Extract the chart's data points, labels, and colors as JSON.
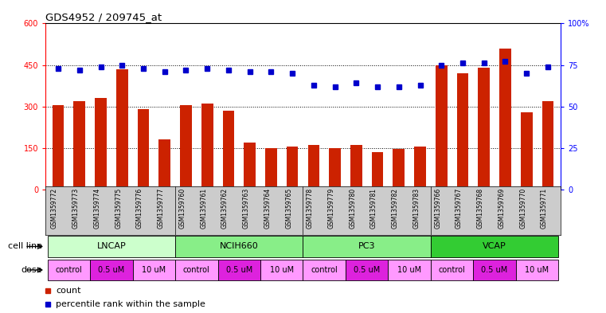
{
  "title": "GDS4952 / 209745_at",
  "samples": [
    "GSM1359772",
    "GSM1359773",
    "GSM1359774",
    "GSM1359775",
    "GSM1359776",
    "GSM1359777",
    "GSM1359760",
    "GSM1359761",
    "GSM1359762",
    "GSM1359763",
    "GSM1359764",
    "GSM1359765",
    "GSM1359778",
    "GSM1359779",
    "GSM1359780",
    "GSM1359781",
    "GSM1359782",
    "GSM1359783",
    "GSM1359766",
    "GSM1359767",
    "GSM1359768",
    "GSM1359769",
    "GSM1359770",
    "GSM1359771"
  ],
  "counts": [
    305,
    320,
    330,
    435,
    290,
    180,
    305,
    310,
    285,
    170,
    150,
    155,
    160,
    150,
    160,
    135,
    145,
    155,
    450,
    420,
    440,
    510,
    280,
    320
  ],
  "percentile_ranks": [
    73,
    72,
    74,
    75,
    73,
    71,
    72,
    73,
    72,
    71,
    71,
    70,
    63,
    62,
    64,
    62,
    62,
    63,
    75,
    76,
    76,
    77,
    70,
    74
  ],
  "cell_line_names": [
    "LNCAP",
    "NCIH660",
    "PC3",
    "VCAP"
  ],
  "cell_line_ranges": [
    [
      0,
      5
    ],
    [
      6,
      11
    ],
    [
      12,
      17
    ],
    [
      18,
      23
    ]
  ],
  "cell_line_colors": [
    "#ccffcc",
    "#88ee88",
    "#88ee88",
    "#33cc33"
  ],
  "dose_labels": [
    "control",
    "0.5 uM",
    "10 uM",
    "control",
    "0.5 uM",
    "10 uM",
    "control",
    "0.5 uM",
    "10 uM",
    "control",
    "0.5 uM",
    "10 uM"
  ],
  "dose_ranges": [
    [
      0,
      1
    ],
    [
      2,
      3
    ],
    [
      4,
      5
    ],
    [
      6,
      7
    ],
    [
      8,
      9
    ],
    [
      10,
      11
    ],
    [
      12,
      13
    ],
    [
      14,
      15
    ],
    [
      16,
      17
    ],
    [
      18,
      19
    ],
    [
      20,
      21
    ],
    [
      22,
      23
    ]
  ],
  "dose_colors": [
    "#ff99ff",
    "#dd22dd",
    "#ff99ff",
    "#ff99ff",
    "#dd22dd",
    "#ff99ff",
    "#ff99ff",
    "#dd22dd",
    "#ff99ff",
    "#ff99ff",
    "#dd22dd",
    "#ff99ff"
  ],
  "bar_color": "#cc2200",
  "dot_color": "#0000cc",
  "ylim_left": [
    0,
    600
  ],
  "ylim_right": [
    0,
    100
  ],
  "yticks_left": [
    0,
    150,
    300,
    450,
    600
  ],
  "yticks_right": [
    0,
    25,
    50,
    75,
    100
  ],
  "ytick_labels_right": [
    "0",
    "25",
    "50",
    "75",
    "100%"
  ],
  "grid_dotted_values": [
    150,
    300,
    450
  ],
  "cell_line_label": "cell line",
  "dose_label": "dose",
  "legend_count": "count",
  "legend_percentile": "percentile rank within the sample",
  "gsm_bg_color": "#cccccc",
  "background_color": "#ffffff"
}
